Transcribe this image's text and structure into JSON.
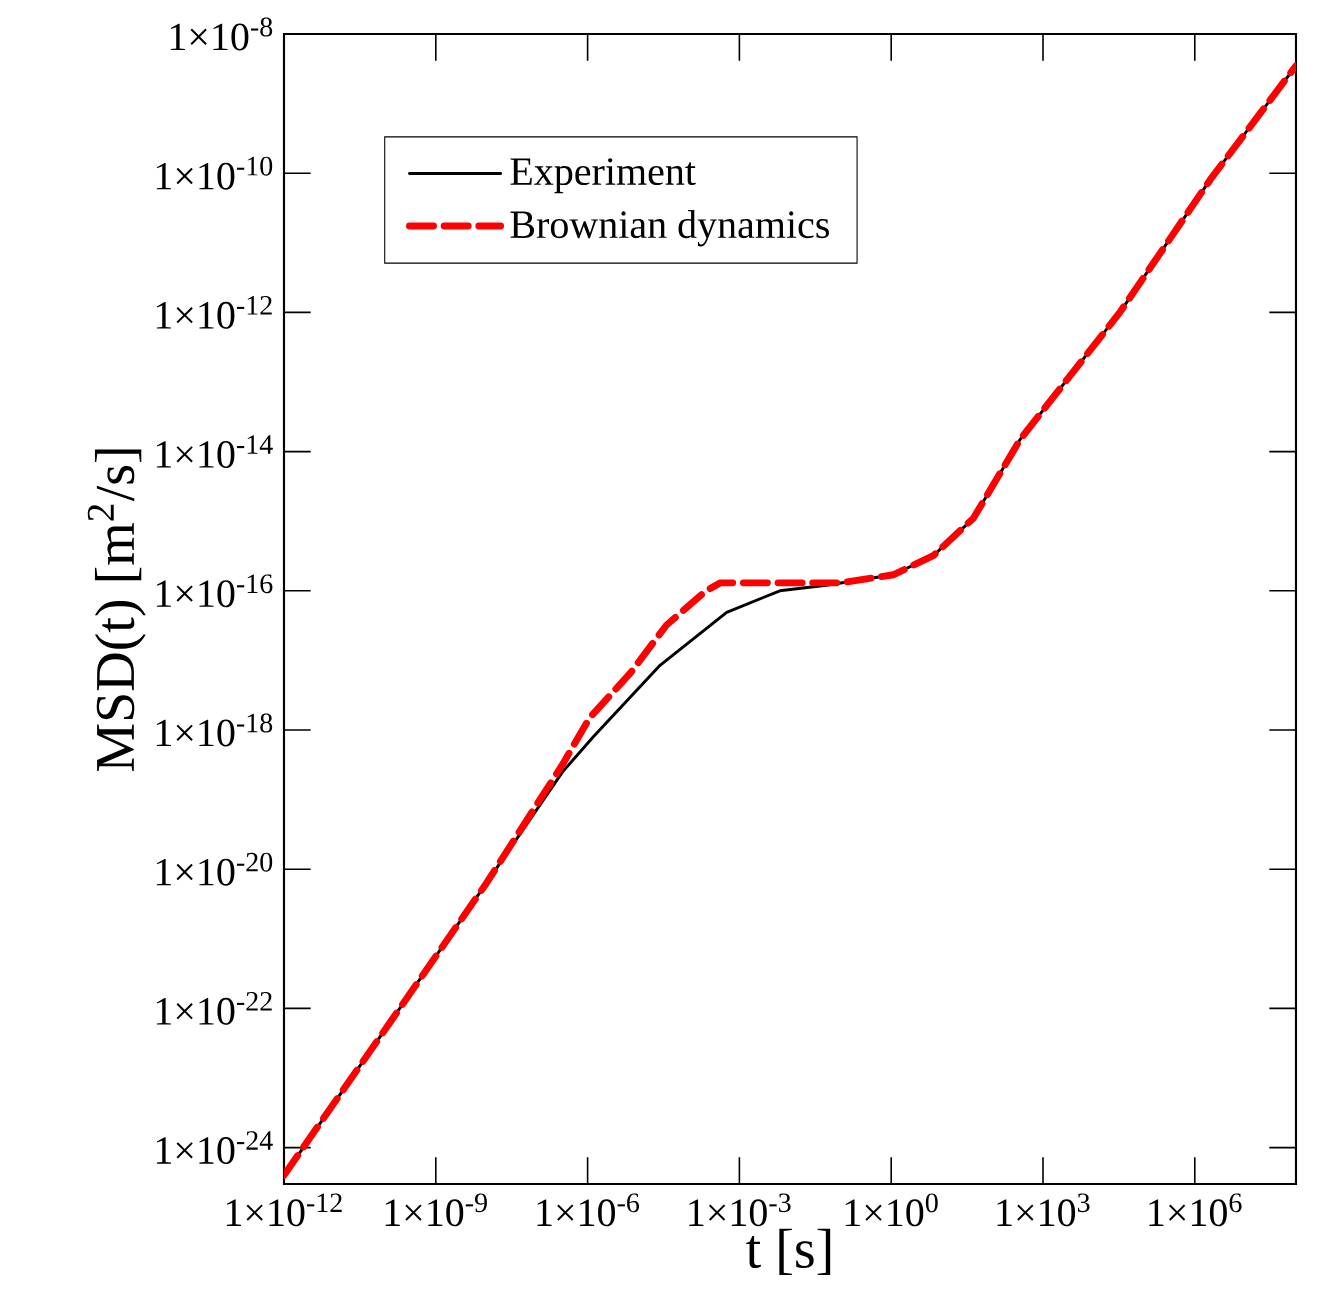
{
  "chart_data": {
    "type": "line",
    "xlabel": "t [s]",
    "ylabel": "MSD(t) [m$^{2}$/s]",
    "log": "xy",
    "legend": "top left",
    "xlim": [
      1e-12,
      100000000.0
    ],
    "ylim": [
      3e-25,
      1e-08
    ],
    "xticks": [
      {
        "value": 1e-12,
        "label": "1×10$^{-12}$"
      },
      {
        "value": 1e-09,
        "label": "1×10$^{-9}$"
      },
      {
        "value": 1e-06,
        "label": "1×10$^{-6}$"
      },
      {
        "value": 0.001,
        "label": "1×10$^{-3}$"
      },
      {
        "value": 1,
        "label": "1×10$^{0}$"
      },
      {
        "value": 1000.0,
        "label": "1×10$^{3}$"
      },
      {
        "value": 1000000.0,
        "label": "1×10$^{6}$"
      }
    ],
    "yticks": [
      {
        "value": 1e-24,
        "label": "1×10$^{-24}$"
      },
      {
        "value": 1e-22,
        "label": "1×10$^{-22}$"
      },
      {
        "value": 1e-20,
        "label": "1×10$^{-20}$"
      },
      {
        "value": 1e-18,
        "label": "1×10$^{-18}$"
      },
      {
        "value": 1e-16,
        "label": "1×10$^{-16}$"
      },
      {
        "value": 1e-14,
        "label": "1×10$^{-14}$"
      },
      {
        "value": 1e-12,
        "label": "1×10$^{-12}$"
      },
      {
        "value": 1e-10,
        "label": "1×10$^{-10}$"
      },
      {
        "value": 1e-08,
        "label": "1×10$^{-8}$"
      }
    ],
    "series": [
      {
        "name": "Experiment",
        "color": "#000000",
        "line_style": "solid",
        "x": [
          1e-12,
          1e-10,
          1e-08,
          3.2e-07,
          1.3e-06,
          2.7e-05,
          0.00056,
          0.0063,
          0.052,
          1.1,
          6.8,
          42,
          355,
          33000.0,
          2000000.0,
          100000000.0
        ],
        "values": [
          4e-25,
          5e-23,
          6.3e-21,
          2.5e-19,
          8e-19,
          8.5e-18,
          4.9e-17,
          1e-16,
          1.2e-16,
          1.7e-16,
          3.2e-16,
          1.1e-15,
          1.5e-14,
          1e-12,
          8e-11,
          3.5e-09
        ]
      },
      {
        "name": "Brownian dynamics",
        "color": "#ff0000",
        "line_style": "dashed",
        "x": [
          1e-12,
          1e-10,
          1e-08,
          3.2e-07,
          1.1e-06,
          6.9e-06,
          3.6e-05,
          0.00022,
          0.00042,
          0.1,
          1.1,
          6.8,
          42,
          355,
          33000.0,
          2000000.0,
          100000000.0
        ],
        "values": [
          4e-25,
          5e-23,
          6.3e-21,
          3.2e-19,
          1.5e-18,
          6.5e-18,
          3.2e-17,
          1e-16,
          1.3e-16,
          1.3e-16,
          1.7e-16,
          3.2e-16,
          1.1e-15,
          1.5e-14,
          1e-12,
          8e-11,
          3.5e-09
        ]
      }
    ]
  }
}
